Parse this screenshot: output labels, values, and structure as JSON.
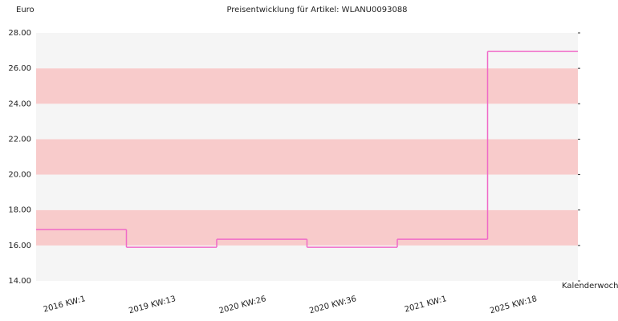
{
  "chart_data": {
    "type": "step",
    "title": "Preisentwicklung für Artikel: WLANU0093088",
    "y_label": "Euro",
    "x_label": "Kalenderwoche",
    "categories": [
      "2016 KW:1",
      "2019 KW:13",
      "2020 KW:26",
      "2020 KW:36",
      "2021 KW:1",
      "2025 KW:18"
    ],
    "values": [
      16.9,
      15.9,
      16.35,
      15.9,
      16.35,
      26.95
    ],
    "color": "#f06ac8",
    "band_colors": [
      "#f5f5f5",
      "#f8cbcb"
    ],
    "ylim": [
      14,
      28
    ],
    "yticks": [
      {
        "value": 14,
        "label": "14.00"
      },
      {
        "value": 16,
        "label": "16.00"
      },
      {
        "value": 18,
        "label": "18.00"
      },
      {
        "value": 20,
        "label": "20.00"
      },
      {
        "value": 22,
        "label": "22.00"
      },
      {
        "value": 24,
        "label": "24.00"
      },
      {
        "value": 26,
        "label": "26.00"
      },
      {
        "value": 28,
        "label": "28.00"
      }
    ]
  }
}
